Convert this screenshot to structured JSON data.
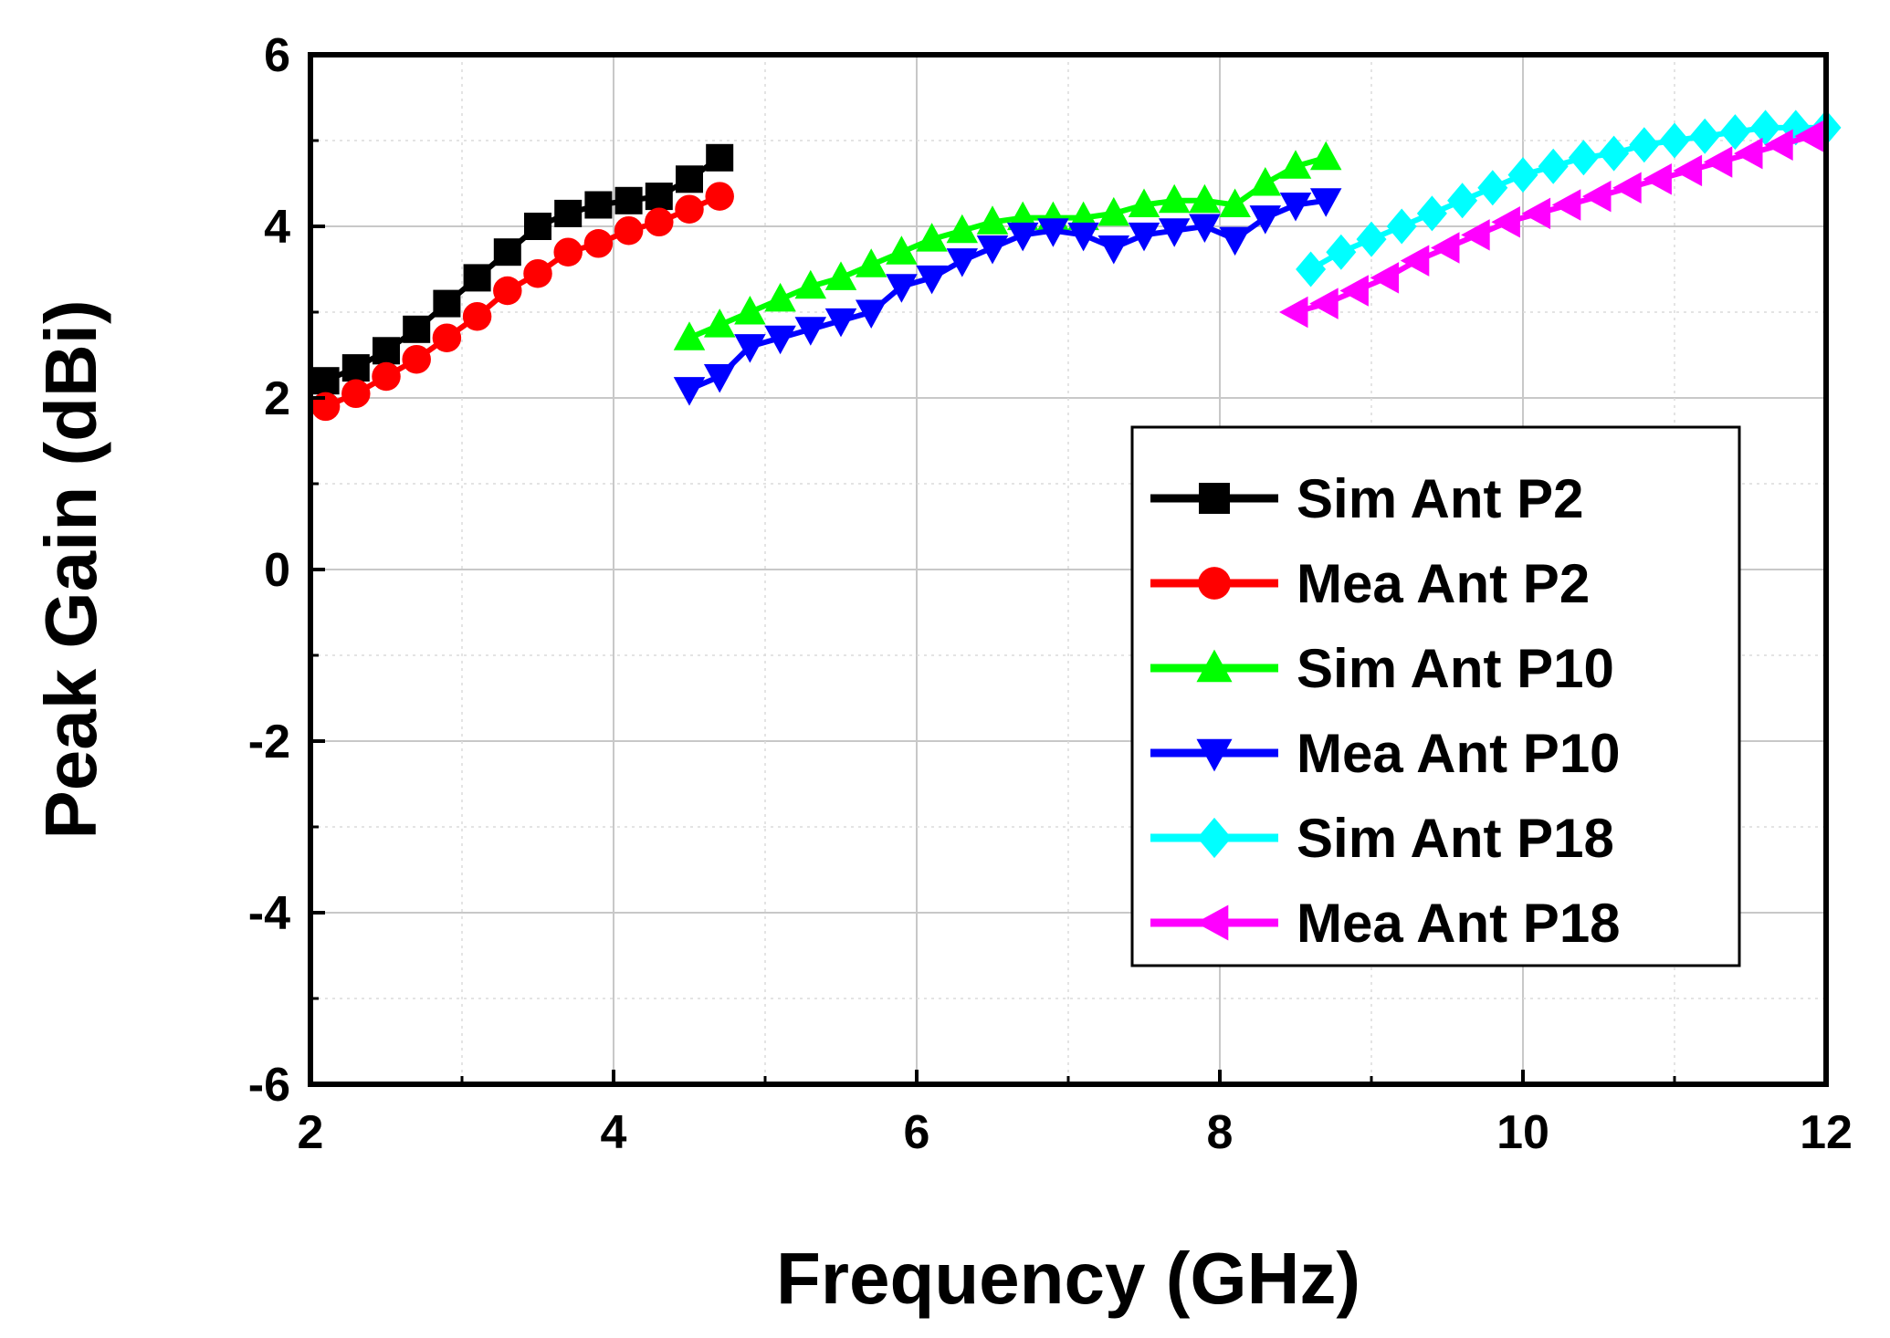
{
  "chart_data": {
    "type": "line",
    "title": "",
    "xlabel": "Frequency (GHz)",
    "ylabel": "Peak Gain (dBi)",
    "xlim": [
      2,
      12
    ],
    "ylim": [
      -6,
      6
    ],
    "xticks": [
      2,
      4,
      6,
      8,
      10,
      12
    ],
    "yticks": [
      -6,
      -4,
      -2,
      0,
      2,
      4,
      6
    ],
    "grid": true,
    "legend_position": "center-right",
    "series": [
      {
        "name": "Sim Ant P2",
        "color": "#000000",
        "marker": "square",
        "x": [
          2.1,
          2.3,
          2.5,
          2.7,
          2.9,
          3.1,
          3.3,
          3.5,
          3.7,
          3.9,
          4.1,
          4.3,
          4.5,
          4.7
        ],
        "y": [
          2.2,
          2.35,
          2.55,
          2.8,
          3.1,
          3.4,
          3.7,
          4.0,
          4.15,
          4.25,
          4.3,
          4.35,
          4.55,
          4.8
        ]
      },
      {
        "name": "Mea Ant P2",
        "color": "#ff0000",
        "marker": "circle",
        "x": [
          2.1,
          2.3,
          2.5,
          2.7,
          2.9,
          3.1,
          3.3,
          3.5,
          3.7,
          3.9,
          4.1,
          4.3,
          4.5,
          4.7
        ],
        "y": [
          1.9,
          2.05,
          2.25,
          2.45,
          2.7,
          2.95,
          3.25,
          3.45,
          3.7,
          3.8,
          3.95,
          4.05,
          4.2,
          4.35
        ]
      },
      {
        "name": "Sim Ant P10",
        "color": "#00ff00",
        "marker": "triangle-up",
        "x": [
          4.5,
          4.7,
          4.9,
          5.1,
          5.3,
          5.5,
          5.7,
          5.9,
          6.1,
          6.3,
          6.5,
          6.7,
          6.9,
          7.1,
          7.3,
          7.5,
          7.7,
          7.9,
          8.1,
          8.3,
          8.5,
          8.7
        ],
        "y": [
          2.7,
          2.85,
          3.0,
          3.15,
          3.3,
          3.4,
          3.55,
          3.7,
          3.85,
          3.95,
          4.05,
          4.1,
          4.1,
          4.1,
          4.15,
          4.25,
          4.3,
          4.3,
          4.25,
          4.5,
          4.7,
          4.8
        ]
      },
      {
        "name": "Mea Ant P10",
        "color": "#0000ff",
        "marker": "triangle-down",
        "x": [
          4.5,
          4.7,
          4.9,
          5.1,
          5.3,
          5.5,
          5.7,
          5.9,
          6.1,
          6.3,
          6.5,
          6.7,
          6.9,
          7.1,
          7.3,
          7.5,
          7.7,
          7.9,
          8.1,
          8.3,
          8.5,
          8.7
        ],
        "y": [
          2.1,
          2.25,
          2.6,
          2.7,
          2.8,
          2.9,
          3.0,
          3.3,
          3.4,
          3.6,
          3.75,
          3.9,
          3.95,
          3.9,
          3.75,
          3.9,
          3.95,
          4.0,
          3.85,
          4.1,
          4.25,
          4.3
        ]
      },
      {
        "name": "Sim Ant P18",
        "color": "#00ffff",
        "marker": "diamond",
        "x": [
          8.6,
          8.8,
          9.0,
          9.2,
          9.4,
          9.6,
          9.8,
          10.0,
          10.2,
          10.4,
          10.6,
          10.8,
          11.0,
          11.2,
          11.4,
          11.6,
          11.8,
          12.0
        ],
        "y": [
          3.5,
          3.7,
          3.85,
          4.0,
          4.15,
          4.3,
          4.45,
          4.6,
          4.7,
          4.8,
          4.85,
          4.95,
          5.0,
          5.05,
          5.1,
          5.15,
          5.15,
          5.15
        ]
      },
      {
        "name": "Mea Ant P18",
        "color": "#ff00ff",
        "marker": "triangle-left",
        "x": [
          8.5,
          8.7,
          8.9,
          9.1,
          9.3,
          9.5,
          9.7,
          9.9,
          10.1,
          10.3,
          10.5,
          10.7,
          10.9,
          11.1,
          11.3,
          11.5,
          11.7,
          11.9
        ],
        "y": [
          3.0,
          3.1,
          3.25,
          3.4,
          3.6,
          3.75,
          3.9,
          4.05,
          4.15,
          4.25,
          4.35,
          4.45,
          4.55,
          4.65,
          4.75,
          4.85,
          4.95,
          5.05
        ]
      }
    ]
  }
}
